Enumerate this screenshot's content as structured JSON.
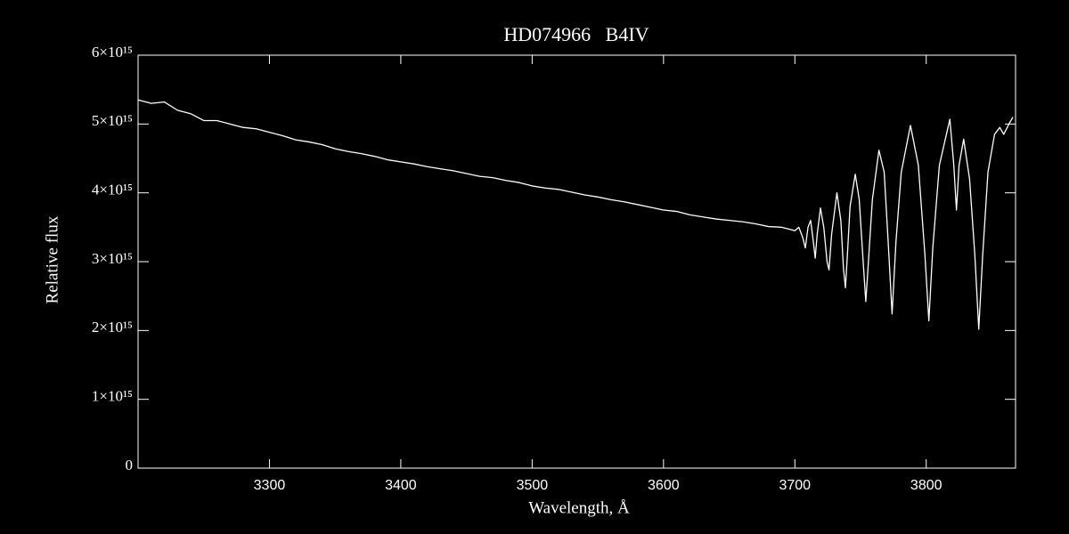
{
  "chart_data": {
    "type": "line",
    "title": "HD074966   B4IV",
    "x_label": "Wavelength, Å",
    "y_label": "Relative flux",
    "color": "#ffffff",
    "xlim": [
      3200,
      3868
    ],
    "ylim": [
      0,
      6000000000000000.0
    ],
    "xticks": [
      3300,
      3400,
      3500,
      3600,
      3700,
      3800
    ],
    "yticks": [
      0,
      {
        "value": 1000000000000000.0,
        "label": "1×10¹⁵"
      },
      {
        "value": 2000000000000000.0,
        "label": "2×10¹⁵"
      },
      {
        "value": 3000000000000000.0,
        "label": "3×10¹⁵"
      },
      {
        "value": 4000000000000000.0,
        "label": "4×10¹⁵"
      },
      {
        "value": 5000000000000000.0,
        "label": "5×10¹⁵"
      },
      {
        "value": 6000000000000000.0,
        "label": "6×10¹⁵"
      }
    ],
    "x": [
      3200,
      3210,
      3220,
      3230,
      3240,
      3250,
      3260,
      3270,
      3280,
      3290,
      3300,
      3310,
      3320,
      3330,
      3340,
      3350,
      3360,
      3370,
      3380,
      3390,
      3400,
      3410,
      3420,
      3430,
      3440,
      3450,
      3460,
      3470,
      3480,
      3490,
      3500,
      3510,
      3520,
      3530,
      3540,
      3550,
      3560,
      3570,
      3580,
      3590,
      3600,
      3610,
      3620,
      3630,
      3640,
      3650,
      3660,
      3670,
      3680,
      3690,
      3700,
      3703,
      3706,
      3708,
      3710,
      3712,
      3714,
      3715.5,
      3717,
      3719.5,
      3722,
      3724.5,
      3726,
      3728,
      3732,
      3735,
      3737,
      3738.5,
      3740,
      3742,
      3746,
      3749,
      3752,
      3754,
      3756,
      3759,
      3764,
      3768,
      3771,
      3774,
      3777,
      3781,
      3788,
      3794,
      3799,
      3802,
      3805,
      3810,
      3818,
      3821,
      3823,
      3825,
      3828.5,
      3833,
      3837,
      3840,
      3843,
      3847,
      3852,
      3856,
      3859,
      3863,
      3866
    ],
    "values": [
      5350000000000000.0,
      5300000000000000.0,
      5320000000000000.0,
      5200000000000000.0,
      5150000000000000.0,
      5050000000000000.0,
      5050000000000000.0,
      5000000000000000.0,
      4950000000000000.0,
      4930000000000000.0,
      4880000000000000.0,
      4830000000000000.0,
      4770000000000000.0,
      4740000000000000.0,
      4700000000000000.0,
      4640000000000000.0,
      4600000000000000.0,
      4570000000000000.0,
      4530000000000000.0,
      4480000000000000.0,
      4450000000000000.0,
      4420000000000000.0,
      4380000000000000.0,
      4350000000000000.0,
      4320000000000000.0,
      4280000000000000.0,
      4240000000000000.0,
      4220000000000000.0,
      4180000000000000.0,
      4150000000000000.0,
      4100000000000000.0,
      4070000000000000.0,
      4050000000000000.0,
      4010000000000000.0,
      3970000000000000.0,
      3940000000000000.0,
      3900000000000000.0,
      3870000000000000.0,
      3830000000000000.0,
      3790000000000000.0,
      3750000000000000.0,
      3730000000000000.0,
      3680000000000000.0,
      3650000000000000.0,
      3620000000000000.0,
      3600000000000000.0,
      3580000000000000.0,
      3550000000000000.0,
      3510000000000000.0,
      3500000000000000.0,
      3450000000000000.0,
      3500000000000000.0,
      3350000000000000.0,
      3200000000000000.0,
      3500000000000000.0,
      3600000000000000.0,
      3300000000000000.0,
      3050000000000000.0,
      3400000000000000.0,
      3780000000000000.0,
      3500000000000000.0,
      3000000000000000.0,
      2880000000000000.0,
      3400000000000000.0,
      4000000000000000.0,
      3600000000000000.0,
      2900000000000000.0,
      2620000000000000.0,
      3100000000000000.0,
      3800000000000000.0,
      4270000000000000.0,
      3900000000000000.0,
      3000000000000000.0,
      2420000000000000.0,
      3000000000000000.0,
      3900000000000000.0,
      4620000000000000.0,
      4300000000000000.0,
      3300000000000000.0,
      2240000000000000.0,
      3300000000000000.0,
      4300000000000000.0,
      4980000000000000.0,
      4400000000000000.0,
      3100000000000000.0,
      2140000000000000.0,
      3200000000000000.0,
      4400000000000000.0,
      5070000000000000.0,
      4400000000000000.0,
      3750000000000000.0,
      4400000000000000.0,
      4780000000000000.0,
      4200000000000000.0,
      3100000000000000.0,
      2020000000000000.0,
      3100000000000000.0,
      4300000000000000.0,
      4850000000000000.0,
      4950000000000000.0,
      4850000000000000.0,
      5000000000000000.0,
      5100000000000000.0
    ]
  }
}
